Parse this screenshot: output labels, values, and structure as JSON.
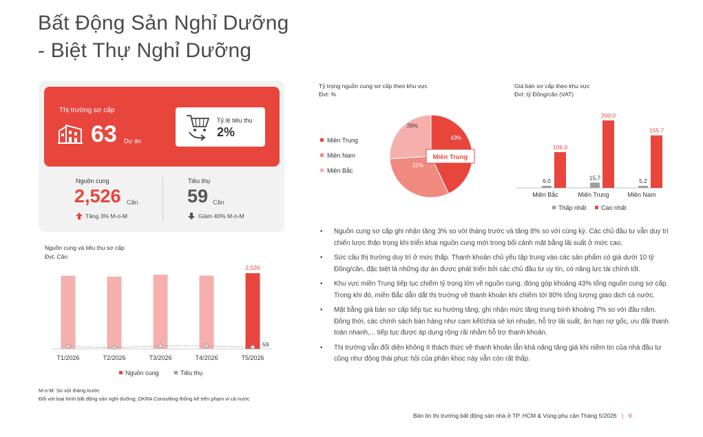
{
  "page": {
    "title_line1": "Bất Động Sản Nghỉ Dưỡng",
    "title_line2": "- Biệt Thự Nghỉ Dưỡng"
  },
  "kpi": {
    "primary_label": "Thị trường sơ cấp",
    "projects_value": "63",
    "projects_unit": "Dự án",
    "absorption_label": "Tỷ lệ tiêu thụ",
    "absorption_value": "2%",
    "supply_label": "Nguồn cung",
    "supply_value": "2,526",
    "supply_unit": "Căn",
    "supply_change": "Tăng 3% M-o-M",
    "sales_label": "Tiêu thụ",
    "sales_value": "59",
    "sales_unit": "Căn",
    "sales_change": "Giảm 40% M-o-M"
  },
  "colors": {
    "accent": "#e8453c",
    "pink": "#f5b0ad",
    "salmon": "#f08a80",
    "gray": "#9e9e9e"
  },
  "chart_data": [
    {
      "type": "pie",
      "title": "Tỷ trọng nguồn cung sơ cấp theo khu vực",
      "subtitle": "Đvt: %",
      "labels": [
        "Miền Trung",
        "Miền Nam",
        "Miền Bắc"
      ],
      "values": [
        43,
        31,
        26
      ],
      "value_labels": [
        "43%",
        "31%",
        "26%"
      ],
      "colors": [
        "#e8453c",
        "#f08a80",
        "#f5b0ad"
      ],
      "callout": "Miền Trung",
      "legend": "left"
    },
    {
      "type": "bar",
      "title": "Giá bán sơ cấp theo khu vực",
      "subtitle": "Đvt: tỷ Đồng/căn (VAT)",
      "categories": [
        "Miền Bắc",
        "Miền Trung",
        "Miền Nam"
      ],
      "series": [
        {
          "name": "Thấp nhất",
          "values": [
            6.0,
            15.7,
            5.2
          ],
          "labels": [
            "6.0",
            "15.7",
            "5.2"
          ],
          "color": "#9e9e9e"
        },
        {
          "name": "Cao nhất",
          "values": [
            106.0,
            200.0,
            155.7
          ],
          "labels": [
            "106.0",
            "200.0",
            "155.7"
          ],
          "color": "#e8453c"
        }
      ],
      "ylim": [
        0,
        200
      ],
      "legend": "bottom"
    },
    {
      "type": "bar",
      "title": "Nguồn cung và tiêu thụ sơ cấp",
      "subtitle": "Đvt: Căn",
      "categories": [
        "T1/2026",
        "T2/2026",
        "T3/2026",
        "T4/2026",
        "T5/2026"
      ],
      "series": [
        {
          "name": "Nguồn cung",
          "values": [
            2440,
            2410,
            2475,
            2445,
            2526
          ],
          "color": "#f5b0ad",
          "highlight_color": "#e8453c"
        },
        {
          "name": "Tiêu thụ",
          "values": [
            80,
            45,
            100,
            98,
            59
          ],
          "color": "#9e9e9e"
        }
      ],
      "value_labels": {
        "supply_last": "2,526",
        "sales_last": "59"
      },
      "ylim": [
        0,
        2800
      ],
      "legend": "bottom"
    }
  ],
  "notes": {
    "line1": "M-o-M: So với tháng trước",
    "line2": "Đối với loại hình bất động sản nghỉ dưỡng, DKRA Consulting thống kê trên phạm vi cả nước"
  },
  "bullets": [
    "Nguồn cung sơ cấp ghi nhận tăng 3% so với tháng trước và tăng 8% so với cùng kỳ. Các chủ đầu tư vẫn duy trì chiến lược thận trọng khi triển khai nguồn cung mới trong bối cảnh mặt bằng lãi suất ở mức cao.",
    "Sức cầu thị trường duy trì ở mức thấp. Thanh khoản chủ yếu tập trung vào các sản phẩm có giá dưới 10 tỷ Đồng/căn, đặc biệt là những dự án được phát triển bởi các chủ đầu tư uy tín, có năng lực tài chính tốt.",
    "Khu vực miền Trung tiếp tục chiếm tỷ trọng lớn về nguồn cung, đóng góp khoảng 43% tổng nguồn cung sơ cấp. Trong khi đó, miền Bắc dẫn dắt thị trường về thanh khoản khi chiếm tới 80% tổng lượng giao dịch cả nước.",
    "Mặt bằng giá bán sơ cấp tiếp tục xu hướng tăng, ghi nhận mức tăng trung bình khoảng 7% so với đầu năm. Đồng thời, các chính sách bán hàng như cam kết/chia sẻ lợi nhuận, hỗ trợ lãi suất, ân hạn nợ gốc, ưu đãi thanh toán nhanh,... tiếp tục được áp dụng rộng rãi nhằm hỗ trợ thanh khoản.",
    "Thị trường vẫn đối diện không ít thách thức về thanh khoản lẫn khả năng tăng giá khi niềm tin của nhà đầu tư cũng như động thái phục hồi của phân khúc này vẫn còn rất thấp."
  ],
  "bullet_glyph": "•",
  "footer": {
    "text": "Bản tin thị trường bất động sản nhà ở TP. HCM & Vùng phụ cận Tháng 5/2026",
    "separator": "|",
    "page": "9"
  }
}
